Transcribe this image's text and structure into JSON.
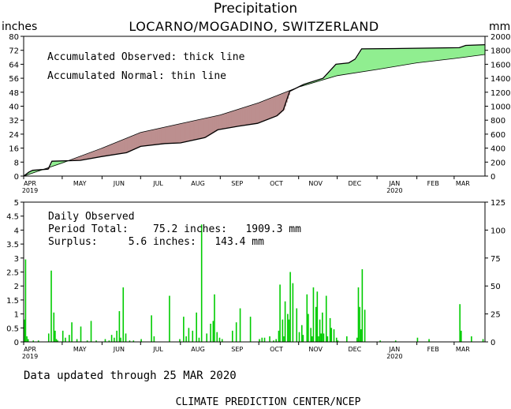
{
  "title": "Precipitation",
  "location": "LOCARNO/MOGADINO, SWITZERLAND",
  "unit_left": "inches",
  "unit_right": "mm",
  "month_labels": [
    "APR",
    "MAY",
    "JUN",
    "JUL",
    "AUG",
    "SEP",
    "OCT",
    "NOV",
    "DEC",
    "JAN",
    "FEB",
    "MAR"
  ],
  "year_labels": {
    "start": "2019",
    "jan": "2020"
  },
  "upper": {
    "legend_observed": "Accumulated Observed: thick line",
    "legend_normal": "Accumulated Normal: thin line",
    "colors": {
      "surplus": "#90ee90",
      "deficit": "#bc8f8f"
    }
  },
  "lower": {
    "heading": "Daily Observed",
    "period_total": "Period Total:    75.2 inches:   1909.3 mm",
    "surplus": "Surplus:     5.6 inches:   143.4 mm",
    "bar_color": "#00cc00"
  },
  "footer": {
    "updated": "Data updated through 25 MAR 2020",
    "source": "CLIMATE PREDICTION CENTER/NCEP"
  },
  "chart_data": [
    {
      "type": "area",
      "title": "Precipitation",
      "subtitle": "LOCARNO/MOGADINO, SWITZERLAND",
      "ylabel": "inches",
      "ylabel_right": "mm",
      "ylim": [
        0,
        80
      ],
      "ylim_right": [
        0,
        2000
      ],
      "yticks": [
        0,
        8,
        16,
        24,
        32,
        40,
        48,
        56,
        64,
        72,
        80
      ],
      "yticks_right": [
        0,
        200,
        400,
        600,
        800,
        1000,
        1200,
        1400,
        1600,
        1800,
        2000
      ],
      "x_start": "2019-04-01",
      "x_end": "2020-03-25",
      "series": [
        {
          "name": "Accumulated Observed",
          "points": [
            [
              "2019-04-01",
              0
            ],
            [
              "2019-04-05",
              2.2
            ],
            [
              "2019-04-08",
              3.3
            ],
            [
              "2019-04-20",
              4.0
            ],
            [
              "2019-04-23",
              8.5
            ],
            [
              "2019-05-15",
              9.0
            ],
            [
              "2019-06-01",
              11.2
            ],
            [
              "2019-06-20",
              13.4
            ],
            [
              "2019-07-01",
              17.0
            ],
            [
              "2019-07-20",
              18.6
            ],
            [
              "2019-08-01",
              19.0
            ],
            [
              "2019-08-20",
              22.0
            ],
            [
              "2019-08-30",
              26.5
            ],
            [
              "2019-09-15",
              28.5
            ],
            [
              "2019-09-30",
              30.2
            ],
            [
              "2019-10-15",
              34.5
            ],
            [
              "2019-10-20",
              37.8
            ],
            [
              "2019-10-25",
              48.5
            ],
            [
              "2019-11-05",
              52.5
            ],
            [
              "2019-11-20",
              56.0
            ],
            [
              "2019-11-30",
              64.0
            ],
            [
              "2019-12-10",
              64.8
            ],
            [
              "2019-12-15",
              67.0
            ],
            [
              "2019-12-20",
              72.8
            ],
            [
              "2020-01-15",
              73.0
            ],
            [
              "2020-03-05",
              73.5
            ],
            [
              "2020-03-10",
              74.8
            ],
            [
              "2020-03-25",
              75.2
            ]
          ]
        },
        {
          "name": "Accumulated Normal",
          "points": [
            [
              "2019-04-01",
              0
            ],
            [
              "2019-05-01",
              7.5
            ],
            [
              "2019-06-01",
              16.0
            ],
            [
              "2019-07-01",
              25.0
            ],
            [
              "2019-08-01",
              30.0
            ],
            [
              "2019-09-01",
              35.0
            ],
            [
              "2019-10-01",
              42.0
            ],
            [
              "2019-11-01",
              51.0
            ],
            [
              "2019-12-01",
              57.5
            ],
            [
              "2020-01-01",
              61.0
            ],
            [
              "2020-02-01",
              64.8
            ],
            [
              "2020-03-01",
              67.3
            ],
            [
              "2020-03-25",
              69.6
            ]
          ]
        }
      ]
    },
    {
      "type": "bar",
      "title": "Daily Observed",
      "ylabel": "inches",
      "ylabel_right": "mm",
      "ylim": [
        0,
        5
      ],
      "ylim_right": [
        0,
        125
      ],
      "yticks": [
        0,
        0.5,
        1,
        1.5,
        2,
        2.5,
        3,
        3.5,
        4,
        4.5,
        5
      ],
      "yticks_right": [
        0,
        25,
        50,
        75,
        100,
        125
      ],
      "x_start": "2019-04-01",
      "x_end": "2020-03-25",
      "dates": [
        "2019-04-01",
        "2019-04-02",
        "2019-04-03",
        "2019-04-04",
        "2019-04-08",
        "2019-04-12",
        "2019-04-20",
        "2019-04-22",
        "2019-04-24",
        "2019-04-25",
        "2019-04-26",
        "2019-04-27",
        "2019-05-01",
        "2019-05-03",
        "2019-05-06",
        "2019-05-08",
        "2019-05-12",
        "2019-05-15",
        "2019-05-20",
        "2019-05-23",
        "2019-05-27",
        "2019-06-03",
        "2019-06-06",
        "2019-06-08",
        "2019-06-10",
        "2019-06-12",
        "2019-06-14",
        "2019-06-15",
        "2019-06-17",
        "2019-06-19",
        "2019-06-22",
        "2019-06-25",
        "2019-07-01",
        "2019-07-09",
        "2019-07-11",
        "2019-07-23",
        "2019-07-31",
        "2019-08-03",
        "2019-08-05",
        "2019-08-07",
        "2019-08-10",
        "2019-08-13",
        "2019-08-15",
        "2019-08-17",
        "2019-08-21",
        "2019-08-24",
        "2019-08-26",
        "2019-08-27",
        "2019-08-29",
        "2019-08-31",
        "2019-09-02",
        "2019-09-10",
        "2019-09-13",
        "2019-09-16",
        "2019-09-24",
        "2019-10-01",
        "2019-10-03",
        "2019-10-05",
        "2019-10-09",
        "2019-10-12",
        "2019-10-14",
        "2019-10-16",
        "2019-10-17",
        "2019-10-19",
        "2019-10-20",
        "2019-10-21",
        "2019-10-23",
        "2019-10-24",
        "2019-10-25",
        "2019-10-27",
        "2019-10-30",
        "2019-11-01",
        "2019-11-03",
        "2019-11-04",
        "2019-11-07",
        "2019-11-08",
        "2019-11-10",
        "2019-11-11",
        "2019-11-12",
        "2019-11-14",
        "2019-11-15",
        "2019-11-16",
        "2019-11-17",
        "2019-11-18",
        "2019-11-19",
        "2019-11-20",
        "2019-11-22",
        "2019-11-23",
        "2019-11-25",
        "2019-11-26",
        "2019-11-28",
        "2019-11-30",
        "2019-12-01",
        "2019-12-08",
        "2019-12-16",
        "2019-12-17",
        "2019-12-18",
        "2019-12-19",
        "2019-12-20",
        "2019-12-22",
        "2020-01-03",
        "2020-01-15",
        "2020-02-01",
        "2020-02-10",
        "2020-03-05",
        "2020-03-06",
        "2020-03-14",
        "2020-03-23"
      ],
      "values": [
        0.8,
        2.95,
        0.2,
        0.1,
        0.05,
        0.05,
        0.3,
        2.55,
        1.05,
        0.4,
        0.1,
        0.05,
        0.4,
        0.15,
        0.25,
        0.7,
        0.1,
        0.55,
        0.05,
        0.75,
        0.05,
        0.1,
        0.05,
        0.25,
        0.15,
        0.4,
        1.1,
        0.15,
        1.95,
        0.3,
        0.05,
        0.05,
        0.1,
        0.95,
        0.2,
        1.65,
        0.1,
        0.9,
        0.2,
        0.5,
        0.4,
        1.05,
        0.15,
        4.2,
        0.3,
        0.65,
        0.75,
        1.7,
        0.35,
        0.15,
        0.1,
        0.4,
        0.7,
        1.2,
        0.9,
        0.1,
        0.15,
        0.15,
        0.2,
        0.05,
        0.1,
        0.4,
        2.05,
        0.8,
        0.2,
        1.45,
        1.0,
        0.8,
        2.5,
        2.1,
        1.2,
        0.35,
        0.6,
        0.25,
        1.7,
        1.0,
        0.5,
        0.2,
        1.95,
        1.25,
        1.8,
        0.2,
        0.8,
        0.3,
        1.05,
        0.3,
        1.65,
        0.2,
        0.85,
        0.5,
        0.45,
        0.15,
        0.05,
        0.2,
        0.15,
        1.95,
        1.25,
        0.45,
        2.6,
        1.15,
        0.05,
        0.05,
        0.15,
        0.1,
        1.35,
        0.4,
        0.2,
        0.1
      ]
    }
  ]
}
